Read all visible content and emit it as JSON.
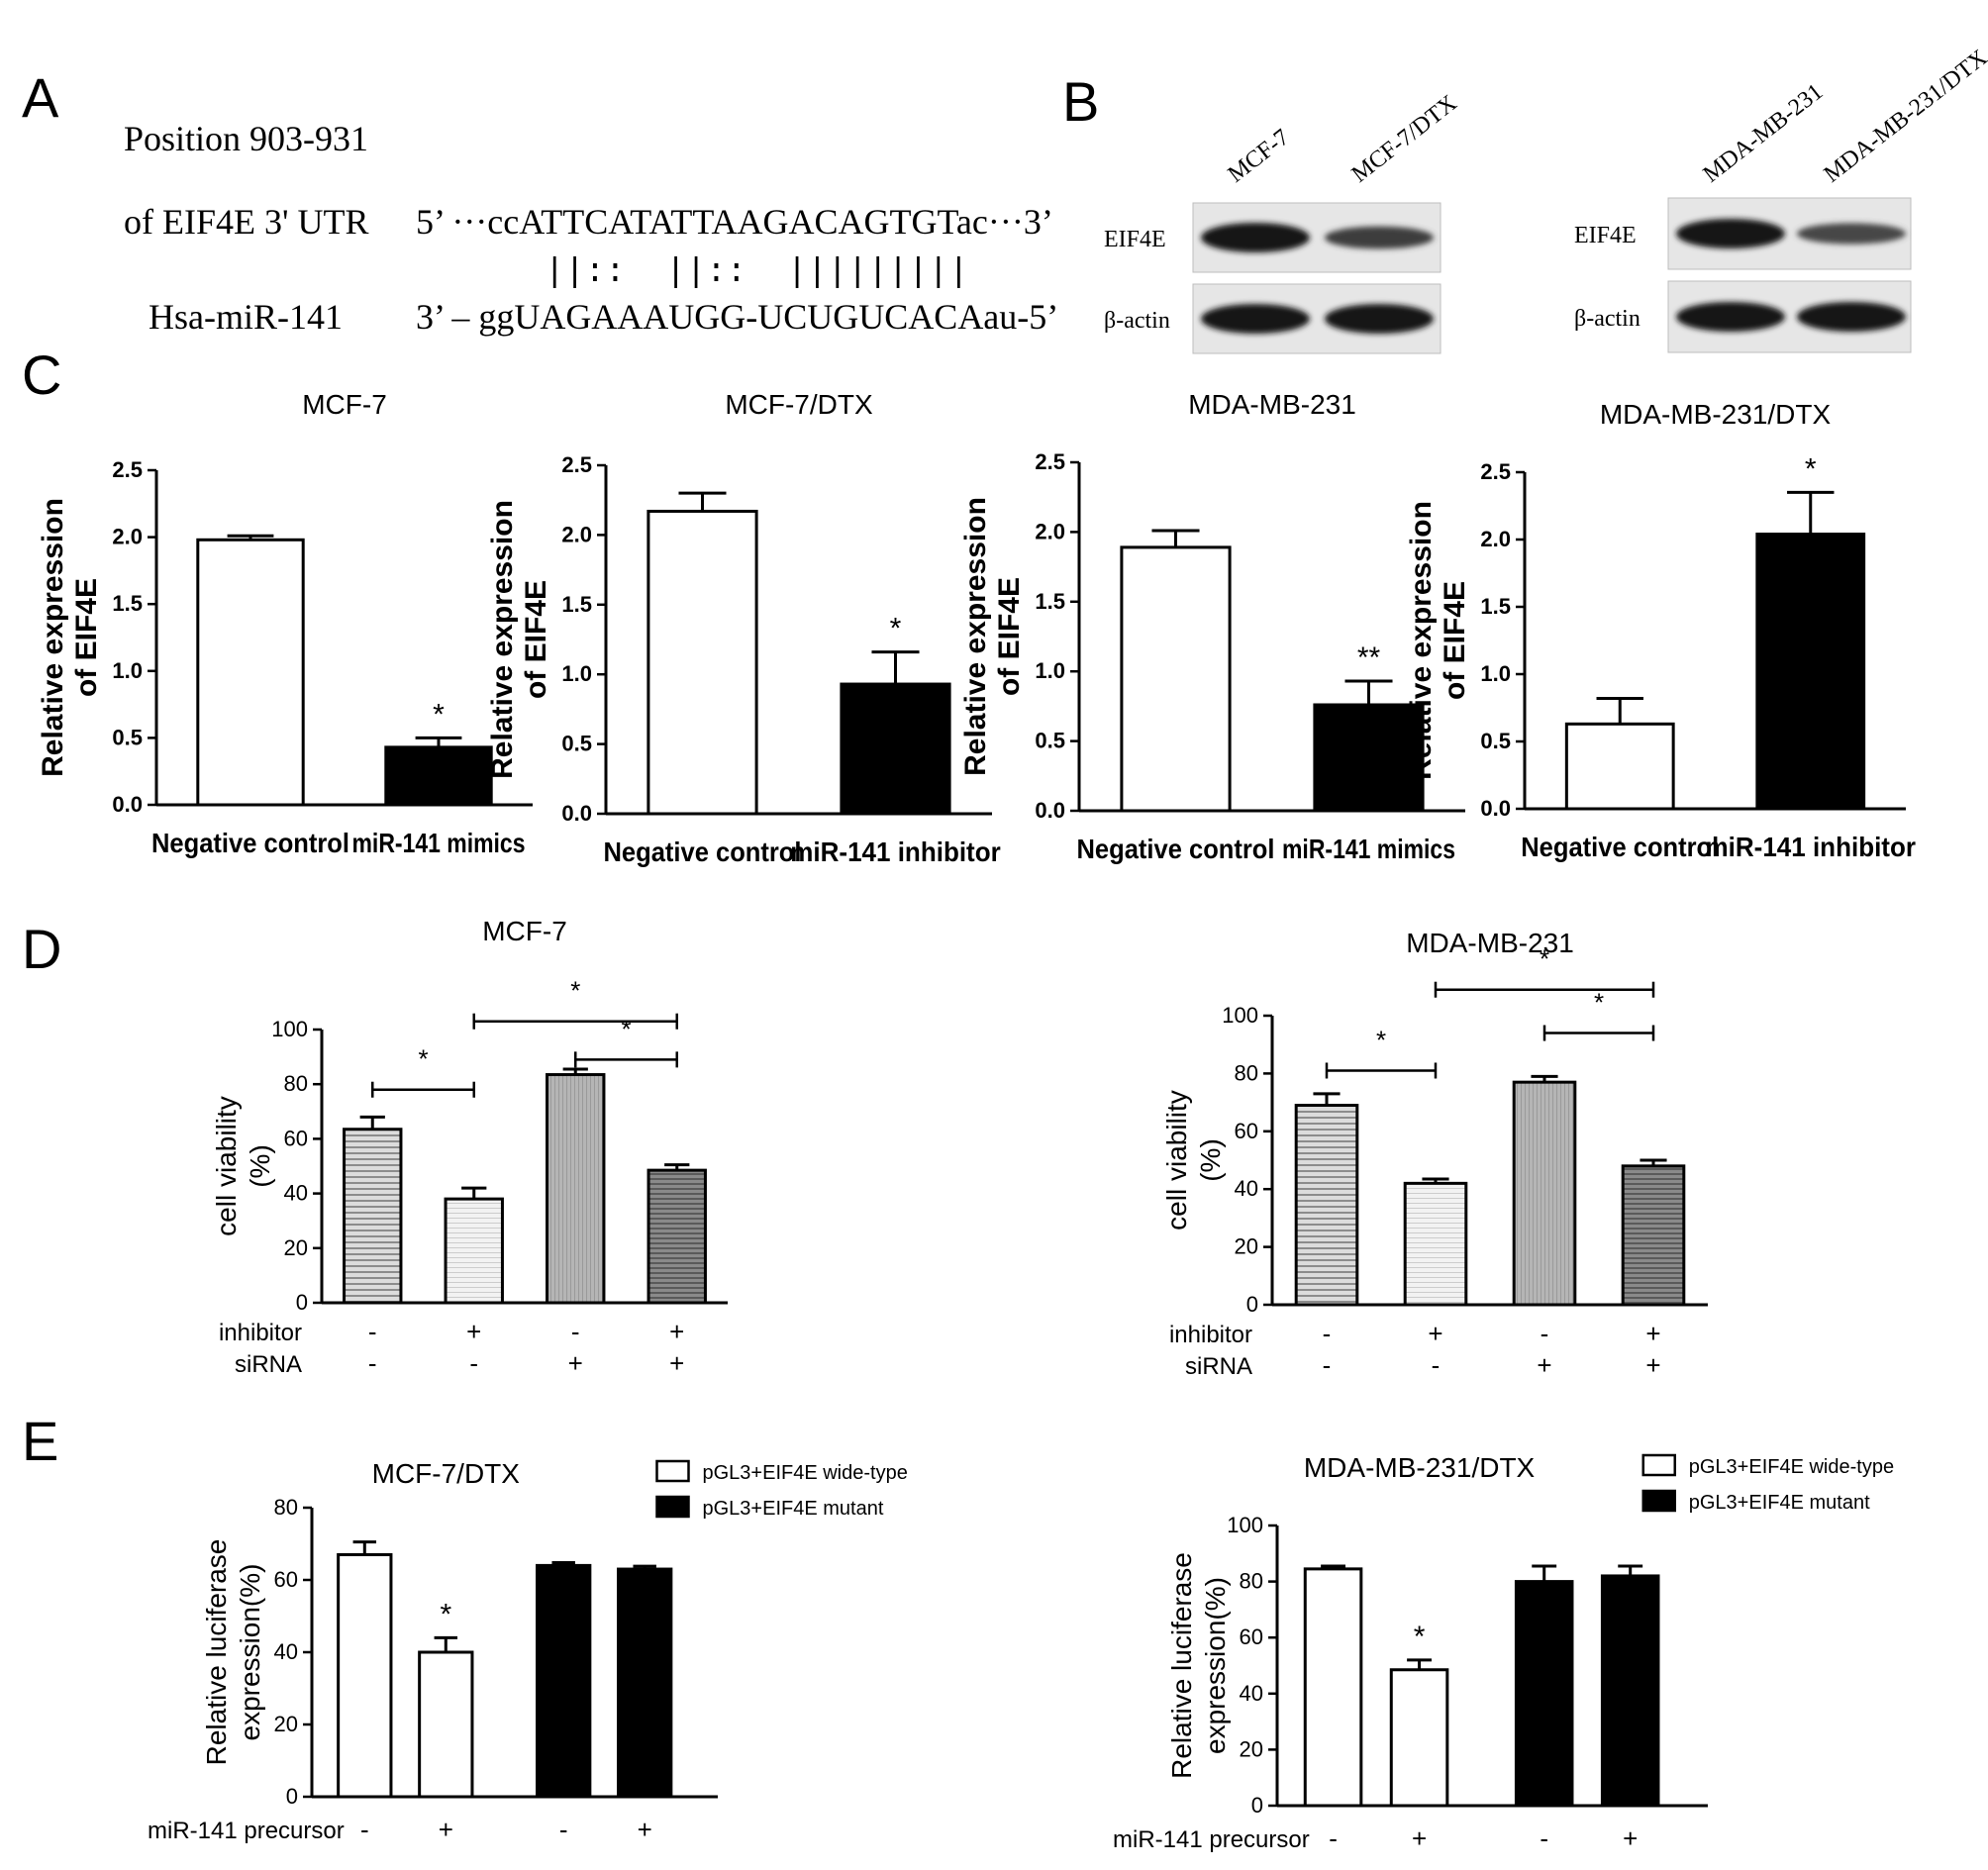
{
  "panel_labels": {
    "A": "A",
    "B": "B",
    "C": "C",
    "D": "D",
    "E": "E"
  },
  "panel_a": {
    "line1": "Position 903-931",
    "line2_label": "of EIF4E 3' UTR",
    "line2_seq": "5’ ···ccATTCATATTAAGACAGTGTac···3’",
    "pairing": "||::  ||::  |||||||||",
    "line3_label": "Hsa-miR-141",
    "line3_seq": "3’ – ggUAGAAAUGG-UCUGUCACAau-5’"
  },
  "panel_b": {
    "blots": [
      {
        "lanes": [
          "MCF-7",
          "MCF-7/DTX"
        ],
        "rows": [
          "EIF4E",
          "β-actin"
        ],
        "band_intensity": [
          [
            1.0,
            0.55
          ],
          [
            1.0,
            1.0
          ]
        ]
      },
      {
        "lanes": [
          "MDA-MB-231",
          "MDA-MB-231/DTX"
        ],
        "rows": [
          "EIF4E",
          "β-actin"
        ],
        "band_intensity": [
          [
            1.0,
            0.45
          ],
          [
            1.0,
            1.0
          ]
        ]
      }
    ]
  },
  "chart_data": [
    {
      "panel": "C",
      "type": "bar",
      "title": "MCF-7",
      "ylabel": "Relative expression\nof EIF4E",
      "ylim": [
        0,
        2.5
      ],
      "yticks": [
        "0.0",
        "0.5",
        "1.0",
        "1.5",
        "2.0",
        "2.5"
      ],
      "categories": [
        "Negative control",
        "miR-141 mimics"
      ],
      "values": [
        1.98,
        0.43
      ],
      "errors": [
        0.03,
        0.07
      ],
      "fills": [
        "#ffffff",
        "#000000"
      ],
      "sig": [
        "",
        "*"
      ]
    },
    {
      "panel": "C",
      "type": "bar",
      "title": "MCF-7/DTX",
      "ylabel": "Relative expression\nof EIF4E",
      "ylim": [
        0,
        2.5
      ],
      "yticks": [
        "0.0",
        "0.5",
        "1.0",
        "1.5",
        "2.0",
        "2.5"
      ],
      "categories": [
        "Negative control",
        "miR-141 inhibitor"
      ],
      "values": [
        2.17,
        0.93
      ],
      "errors": [
        0.13,
        0.23
      ],
      "fills": [
        "#ffffff",
        "#000000"
      ],
      "sig": [
        "",
        "*"
      ]
    },
    {
      "panel": "C",
      "type": "bar",
      "title": "MDA-MB-231",
      "ylabel": "Relative expression\nof EIF4E",
      "ylim": [
        0,
        2.5
      ],
      "yticks": [
        "0.0",
        "0.5",
        "1.0",
        "1.5",
        "2.0",
        "2.5"
      ],
      "categories": [
        "Negative control",
        "miR-141 mimics"
      ],
      "values": [
        1.89,
        0.76
      ],
      "errors": [
        0.12,
        0.17
      ],
      "fills": [
        "#ffffff",
        "#000000"
      ],
      "sig": [
        "",
        "**"
      ]
    },
    {
      "panel": "C",
      "type": "bar",
      "title": "MDA-MB-231/DTX",
      "ylabel": "Relative expression\nof EIF4E",
      "ylim": [
        0,
        2.5
      ],
      "yticks": [
        "0.0",
        "0.5",
        "1.0",
        "1.5",
        "2.0",
        "2.5"
      ],
      "categories": [
        "Negative control",
        "miR-141 inhibitor"
      ],
      "values": [
        0.63,
        2.04
      ],
      "errors": [
        0.19,
        0.31
      ],
      "fills": [
        "#ffffff",
        "#000000"
      ],
      "sig": [
        "",
        "*"
      ]
    },
    {
      "panel": "D",
      "type": "bar",
      "title": "MCF-7",
      "ylabel": "cell viability\n(%)",
      "ylim": [
        0,
        100
      ],
      "yticks": [
        "0",
        "20",
        "40",
        "60",
        "80",
        "100"
      ],
      "row_labels": [
        "inhibitor",
        "siRNA"
      ],
      "rows": [
        [
          "-",
          "+",
          "-",
          "+"
        ],
        [
          "-",
          "-",
          "+",
          "+"
        ]
      ],
      "values": [
        63.5,
        38.0,
        83.5,
        48.5
      ],
      "errors": [
        4.5,
        4.0,
        2.0,
        2.0
      ],
      "fills": [
        "url(#hatchA)",
        "url(#hatchB)",
        "url(#hatchC)",
        "url(#hatchD)"
      ],
      "brackets": [
        {
          "from": 0,
          "to": 1,
          "level": 78,
          "label": "*"
        },
        {
          "from": 1,
          "to": 3,
          "level": 103,
          "label": "*"
        },
        {
          "from": 2,
          "to": 3,
          "level": 89,
          "label": "*"
        }
      ]
    },
    {
      "panel": "D",
      "type": "bar",
      "title": "MDA-MB-231",
      "ylabel": "cell viability\n(%)",
      "ylim": [
        0,
        100
      ],
      "yticks": [
        "0",
        "20",
        "40",
        "60",
        "80",
        "100"
      ],
      "row_labels": [
        "inhibitor",
        "siRNA"
      ],
      "rows": [
        [
          "-",
          "+",
          "-",
          "+"
        ],
        [
          "-",
          "-",
          "+",
          "+"
        ]
      ],
      "values": [
        69.0,
        42.0,
        77.0,
        48.0
      ],
      "errors": [
        4.0,
        1.5,
        2.0,
        2.0
      ],
      "fills": [
        "url(#hatchA)",
        "url(#hatchB)",
        "url(#hatchC)",
        "url(#hatchD)"
      ],
      "brackets": [
        {
          "from": 0,
          "to": 1,
          "level": 81,
          "label": "*"
        },
        {
          "from": 1,
          "to": 3,
          "level": 109,
          "label": "*"
        },
        {
          "from": 2,
          "to": 3,
          "level": 94,
          "label": "*"
        }
      ]
    },
    {
      "panel": "E",
      "type": "bar",
      "title": "MCF-7/DTX",
      "ylabel": "Relative luciferase\nexpression(%)",
      "ylim": [
        0,
        80
      ],
      "yticks": [
        "0",
        "20",
        "40",
        "60",
        "80"
      ],
      "row_labels": [
        "miR-141 precursor"
      ],
      "rows": [
        [
          "-",
          "+",
          "-",
          "+"
        ]
      ],
      "values": [
        67.0,
        40.0,
        64.0,
        63.0
      ],
      "errors": [
        3.5,
        4.0,
        0.8,
        0.8
      ],
      "fills": [
        "#ffffff",
        "#ffffff",
        "#000000",
        "#000000"
      ],
      "sig": [
        "",
        "*",
        "",
        ""
      ],
      "legend": [
        {
          "label": "pGL3+EIF4E wide-type",
          "fill": "#ffffff"
        },
        {
          "label": "pGL3+EIF4E mutant",
          "fill": "#000000"
        }
      ]
    },
    {
      "panel": "E",
      "type": "bar",
      "title": "MDA-MB-231/DTX",
      "ylabel": "Relative luciferase\nexpression(%)",
      "ylim": [
        0,
        100
      ],
      "yticks": [
        "0",
        "20",
        "40",
        "60",
        "80",
        "100"
      ],
      "row_labels": [
        "miR-141 precursor"
      ],
      "rows": [
        [
          "-",
          "+",
          "-",
          "+"
        ]
      ],
      "values": [
        84.5,
        48.5,
        80.0,
        82.0
      ],
      "errors": [
        1.0,
        3.5,
        5.5,
        3.5
      ],
      "fills": [
        "#ffffff",
        "#ffffff",
        "#000000",
        "#000000"
      ],
      "sig": [
        "",
        "*",
        "",
        ""
      ],
      "legend": [
        {
          "label": "pGL3+EIF4E wide-type",
          "fill": "#ffffff"
        },
        {
          "label": "pGL3+EIF4E mutant",
          "fill": "#000000"
        }
      ]
    }
  ]
}
